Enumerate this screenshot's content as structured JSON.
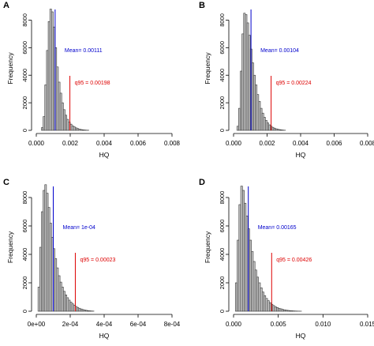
{
  "chart_data": [
    {
      "type": "bar",
      "panel_label": "A",
      "xlabel": "HQ",
      "ylabel": "Frequency",
      "xlim": [
        0,
        0.008
      ],
      "ylim": [
        0,
        9000
      ],
      "x_ticks": [
        "0.000",
        "0.002",
        "0.004",
        "0.006",
        "0.008"
      ],
      "y_ticks": [
        "0",
        "2000",
        "4000",
        "6000",
        "8000"
      ],
      "bin_start": 0.0003,
      "bin_width": 0.0001,
      "counts": [
        200,
        1000,
        3300,
        5800,
        7900,
        8800,
        8600,
        7500,
        6000,
        4600,
        3500,
        2700,
        2000,
        1500,
        1100,
        800,
        600,
        450,
        330,
        250,
        180,
        130,
        90,
        60,
        40,
        25,
        15,
        8
      ],
      "mean": {
        "value": 0.00111,
        "label": "Mean= 0.00111",
        "color": "#0000cc"
      },
      "q95": {
        "value": 0.00198,
        "label": "q95 = 0.00198",
        "color": "#dd0000"
      }
    },
    {
      "type": "bar",
      "panel_label": "B",
      "xlabel": "HQ",
      "ylabel": "Frequency",
      "xlim": [
        0,
        0.008
      ],
      "ylim": [
        0,
        9000
      ],
      "x_ticks": [
        "0.000",
        "0.002",
        "0.004",
        "0.006",
        "0.008"
      ],
      "y_ticks": [
        "0",
        "2000",
        "4000",
        "6000",
        "8000"
      ],
      "bin_start": 0.0002,
      "bin_width": 0.0001,
      "counts": [
        300,
        1600,
        4300,
        7000,
        8500,
        8400,
        7800,
        6900,
        5900,
        4900,
        4000,
        3300,
        2600,
        2100,
        1600,
        1250,
        950,
        720,
        540,
        400,
        300,
        220,
        160,
        110,
        80,
        55,
        35,
        20,
        10
      ],
      "mean": {
        "value": 0.00104,
        "label": "Mean= 0.00104",
        "color": "#0000cc"
      },
      "q95": {
        "value": 0.00224,
        "label": "q95 = 0.00224",
        "color": "#dd0000"
      }
    },
    {
      "type": "bar",
      "panel_label": "C",
      "xlabel": "HQ",
      "ylabel": "Frequency",
      "xlim": [
        0,
        0.0008
      ],
      "ylim": [
        0,
        9000
      ],
      "x_ticks": [
        "0e+00",
        "2e-04",
        "4e-04",
        "6e-04",
        "8e-04"
      ],
      "y_ticks": [
        "0",
        "2000",
        "4000",
        "6000",
        "8000"
      ],
      "bin_start": 1e-05,
      "bin_width": 1e-05,
      "counts": [
        1700,
        4500,
        7000,
        8500,
        8900,
        8300,
        7300,
        6200,
        5200,
        4400,
        3700,
        3050,
        2500,
        2050,
        1700,
        1400,
        1150,
        950,
        780,
        640,
        520,
        420,
        340,
        270,
        210,
        160,
        120,
        90,
        65,
        45,
        30,
        20,
        12
      ],
      "mean": {
        "value": 0.0001,
        "label": "Mean= 1e-04",
        "color": "#0000cc"
      },
      "q95": {
        "value": 0.00023,
        "label": "q95 = 0.00023",
        "color": "#dd0000"
      }
    },
    {
      "type": "bar",
      "panel_label": "D",
      "xlabel": "HQ",
      "ylabel": "Frequency",
      "xlim": [
        0,
        0.015
      ],
      "ylim": [
        0,
        9000
      ],
      "x_ticks": [
        "0.000",
        "0.005",
        "0.010",
        "0.015"
      ],
      "x_tick_values": [
        0,
        0.005,
        0.01,
        0.015
      ],
      "y_ticks": [
        "0",
        "2000",
        "4000",
        "6000",
        "8000"
      ],
      "bin_start": 0.0002,
      "bin_width": 0.0002,
      "counts": [
        2000,
        5000,
        7500,
        8800,
        8500,
        7600,
        6700,
        5800,
        5000,
        4200,
        3500,
        2900,
        2400,
        2000,
        1650,
        1350,
        1100,
        900,
        740,
        600,
        490,
        400,
        320,
        260,
        210,
        170,
        130,
        100,
        80,
        60,
        45,
        35,
        25,
        18,
        12,
        8,
        5
      ],
      "mean": {
        "value": 0.00165,
        "label": "Mean= 0.00165",
        "color": "#0000cc"
      },
      "q95": {
        "value": 0.00426,
        "label": "q95 = 0.00426",
        "color": "#dd0000"
      }
    }
  ]
}
